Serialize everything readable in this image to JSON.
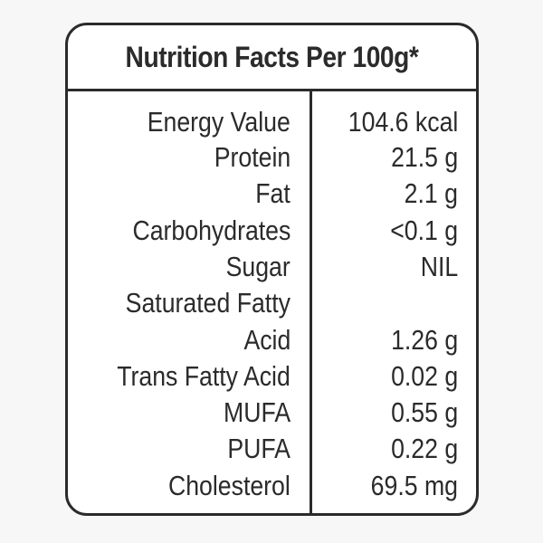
{
  "title": "Nutrition Facts Per 100g*",
  "rows": [
    {
      "label": "Energy Value",
      "value": "104.6 kcal"
    },
    {
      "label": "Protein",
      "value": "21.5 g"
    },
    {
      "label": "Fat",
      "value": "2.1 g"
    },
    {
      "label": "Carbohydrates",
      "value": "<0.1 g"
    },
    {
      "label": "Sugar",
      "value": "NIL"
    },
    {
      "label": "Saturated Fatty",
      "value": ""
    },
    {
      "label": "Acid",
      "value": "1.26 g"
    },
    {
      "label": "Trans Fatty Acid",
      "value": "0.02 g"
    },
    {
      "label": "MUFA",
      "value": "0.55 g"
    },
    {
      "label": "PUFA",
      "value": "0.22 g"
    },
    {
      "label": "Cholesterol",
      "value": "69.5 mg"
    }
  ],
  "colors": {
    "border": "#2b2b2b",
    "text": "#2b2b2b",
    "panel_background": "#ffffff",
    "page_background": "#f7f7f7"
  }
}
